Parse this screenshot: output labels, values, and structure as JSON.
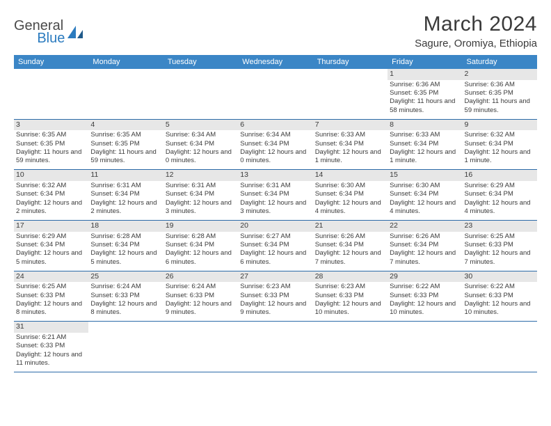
{
  "logo": {
    "general": "General",
    "blue": "Blue"
  },
  "header": {
    "title": "March 2024",
    "location": "Sagure, Oromiya, Ethiopia"
  },
  "weekdays": [
    "Sunday",
    "Monday",
    "Tuesday",
    "Wednesday",
    "Thursday",
    "Friday",
    "Saturday"
  ],
  "colors": {
    "header_bg": "#3b86c6",
    "header_text": "#ffffff",
    "daynum_bg": "#e7e7e7",
    "cell_border": "#2b6aa8",
    "text": "#3a3a3a",
    "logo_blue": "#2b7bbf"
  },
  "weeks": [
    [
      {
        "n": "",
        "sr": "",
        "ss": "",
        "dl": ""
      },
      {
        "n": "",
        "sr": "",
        "ss": "",
        "dl": ""
      },
      {
        "n": "",
        "sr": "",
        "ss": "",
        "dl": ""
      },
      {
        "n": "",
        "sr": "",
        "ss": "",
        "dl": ""
      },
      {
        "n": "",
        "sr": "",
        "ss": "",
        "dl": ""
      },
      {
        "n": "1",
        "sr": "Sunrise: 6:36 AM",
        "ss": "Sunset: 6:35 PM",
        "dl": "Daylight: 11 hours and 58 minutes."
      },
      {
        "n": "2",
        "sr": "Sunrise: 6:36 AM",
        "ss": "Sunset: 6:35 PM",
        "dl": "Daylight: 11 hours and 59 minutes."
      }
    ],
    [
      {
        "n": "3",
        "sr": "Sunrise: 6:35 AM",
        "ss": "Sunset: 6:35 PM",
        "dl": "Daylight: 11 hours and 59 minutes."
      },
      {
        "n": "4",
        "sr": "Sunrise: 6:35 AM",
        "ss": "Sunset: 6:35 PM",
        "dl": "Daylight: 11 hours and 59 minutes."
      },
      {
        "n": "5",
        "sr": "Sunrise: 6:34 AM",
        "ss": "Sunset: 6:34 PM",
        "dl": "Daylight: 12 hours and 0 minutes."
      },
      {
        "n": "6",
        "sr": "Sunrise: 6:34 AM",
        "ss": "Sunset: 6:34 PM",
        "dl": "Daylight: 12 hours and 0 minutes."
      },
      {
        "n": "7",
        "sr": "Sunrise: 6:33 AM",
        "ss": "Sunset: 6:34 PM",
        "dl": "Daylight: 12 hours and 1 minute."
      },
      {
        "n": "8",
        "sr": "Sunrise: 6:33 AM",
        "ss": "Sunset: 6:34 PM",
        "dl": "Daylight: 12 hours and 1 minute."
      },
      {
        "n": "9",
        "sr": "Sunrise: 6:32 AM",
        "ss": "Sunset: 6:34 PM",
        "dl": "Daylight: 12 hours and 1 minute."
      }
    ],
    [
      {
        "n": "10",
        "sr": "Sunrise: 6:32 AM",
        "ss": "Sunset: 6:34 PM",
        "dl": "Daylight: 12 hours and 2 minutes."
      },
      {
        "n": "11",
        "sr": "Sunrise: 6:31 AM",
        "ss": "Sunset: 6:34 PM",
        "dl": "Daylight: 12 hours and 2 minutes."
      },
      {
        "n": "12",
        "sr": "Sunrise: 6:31 AM",
        "ss": "Sunset: 6:34 PM",
        "dl": "Daylight: 12 hours and 3 minutes."
      },
      {
        "n": "13",
        "sr": "Sunrise: 6:31 AM",
        "ss": "Sunset: 6:34 PM",
        "dl": "Daylight: 12 hours and 3 minutes."
      },
      {
        "n": "14",
        "sr": "Sunrise: 6:30 AM",
        "ss": "Sunset: 6:34 PM",
        "dl": "Daylight: 12 hours and 4 minutes."
      },
      {
        "n": "15",
        "sr": "Sunrise: 6:30 AM",
        "ss": "Sunset: 6:34 PM",
        "dl": "Daylight: 12 hours and 4 minutes."
      },
      {
        "n": "16",
        "sr": "Sunrise: 6:29 AM",
        "ss": "Sunset: 6:34 PM",
        "dl": "Daylight: 12 hours and 4 minutes."
      }
    ],
    [
      {
        "n": "17",
        "sr": "Sunrise: 6:29 AM",
        "ss": "Sunset: 6:34 PM",
        "dl": "Daylight: 12 hours and 5 minutes."
      },
      {
        "n": "18",
        "sr": "Sunrise: 6:28 AM",
        "ss": "Sunset: 6:34 PM",
        "dl": "Daylight: 12 hours and 5 minutes."
      },
      {
        "n": "19",
        "sr": "Sunrise: 6:28 AM",
        "ss": "Sunset: 6:34 PM",
        "dl": "Daylight: 12 hours and 6 minutes."
      },
      {
        "n": "20",
        "sr": "Sunrise: 6:27 AM",
        "ss": "Sunset: 6:34 PM",
        "dl": "Daylight: 12 hours and 6 minutes."
      },
      {
        "n": "21",
        "sr": "Sunrise: 6:26 AM",
        "ss": "Sunset: 6:34 PM",
        "dl": "Daylight: 12 hours and 7 minutes."
      },
      {
        "n": "22",
        "sr": "Sunrise: 6:26 AM",
        "ss": "Sunset: 6:34 PM",
        "dl": "Daylight: 12 hours and 7 minutes."
      },
      {
        "n": "23",
        "sr": "Sunrise: 6:25 AM",
        "ss": "Sunset: 6:33 PM",
        "dl": "Daylight: 12 hours and 7 minutes."
      }
    ],
    [
      {
        "n": "24",
        "sr": "Sunrise: 6:25 AM",
        "ss": "Sunset: 6:33 PM",
        "dl": "Daylight: 12 hours and 8 minutes."
      },
      {
        "n": "25",
        "sr": "Sunrise: 6:24 AM",
        "ss": "Sunset: 6:33 PM",
        "dl": "Daylight: 12 hours and 8 minutes."
      },
      {
        "n": "26",
        "sr": "Sunrise: 6:24 AM",
        "ss": "Sunset: 6:33 PM",
        "dl": "Daylight: 12 hours and 9 minutes."
      },
      {
        "n": "27",
        "sr": "Sunrise: 6:23 AM",
        "ss": "Sunset: 6:33 PM",
        "dl": "Daylight: 12 hours and 9 minutes."
      },
      {
        "n": "28",
        "sr": "Sunrise: 6:23 AM",
        "ss": "Sunset: 6:33 PM",
        "dl": "Daylight: 12 hours and 10 minutes."
      },
      {
        "n": "29",
        "sr": "Sunrise: 6:22 AM",
        "ss": "Sunset: 6:33 PM",
        "dl": "Daylight: 12 hours and 10 minutes."
      },
      {
        "n": "30",
        "sr": "Sunrise: 6:22 AM",
        "ss": "Sunset: 6:33 PM",
        "dl": "Daylight: 12 hours and 10 minutes."
      }
    ],
    [
      {
        "n": "31",
        "sr": "Sunrise: 6:21 AM",
        "ss": "Sunset: 6:33 PM",
        "dl": "Daylight: 12 hours and 11 minutes."
      },
      {
        "n": "",
        "sr": "",
        "ss": "",
        "dl": ""
      },
      {
        "n": "",
        "sr": "",
        "ss": "",
        "dl": ""
      },
      {
        "n": "",
        "sr": "",
        "ss": "",
        "dl": ""
      },
      {
        "n": "",
        "sr": "",
        "ss": "",
        "dl": ""
      },
      {
        "n": "",
        "sr": "",
        "ss": "",
        "dl": ""
      },
      {
        "n": "",
        "sr": "",
        "ss": "",
        "dl": ""
      }
    ]
  ]
}
